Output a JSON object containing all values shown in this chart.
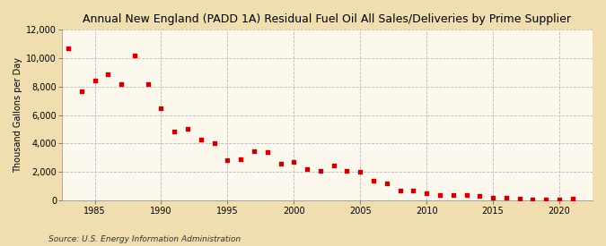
{
  "title": "Annual New England (PADD 1A) Residual Fuel Oil All Sales/Deliveries by Prime Supplier",
  "ylabel": "Thousand Gallons per Day",
  "source": "Source: U.S. Energy Information Administration",
  "background_color": "#f0deb0",
  "plot_background_color": "#fdf8ee",
  "marker_color": "#cc0000",
  "years": [
    1983,
    1984,
    1985,
    1986,
    1987,
    1988,
    1989,
    1990,
    1991,
    1992,
    1993,
    1994,
    1995,
    1996,
    1997,
    1998,
    1999,
    2000,
    2001,
    2002,
    2003,
    2004,
    2005,
    2006,
    2007,
    2008,
    2009,
    2010,
    2011,
    2012,
    2013,
    2014,
    2015,
    2016,
    2017,
    2018,
    2019,
    2020,
    2021
  ],
  "values": [
    10700,
    7650,
    8450,
    8850,
    8200,
    10200,
    8200,
    6450,
    4850,
    5000,
    4250,
    4050,
    2850,
    2900,
    3450,
    3400,
    2600,
    2700,
    2200,
    2050,
    2450,
    2050,
    2000,
    1350,
    1200,
    700,
    650,
    480,
    350,
    350,
    350,
    300,
    150,
    150,
    100,
    80,
    60,
    80,
    100
  ],
  "ylim": [
    0,
    12000
  ],
  "yticks": [
    0,
    2000,
    4000,
    6000,
    8000,
    10000,
    12000
  ],
  "xlim": [
    1982.5,
    2022.5
  ],
  "xticks": [
    1985,
    1990,
    1995,
    2000,
    2005,
    2010,
    2015,
    2020
  ]
}
